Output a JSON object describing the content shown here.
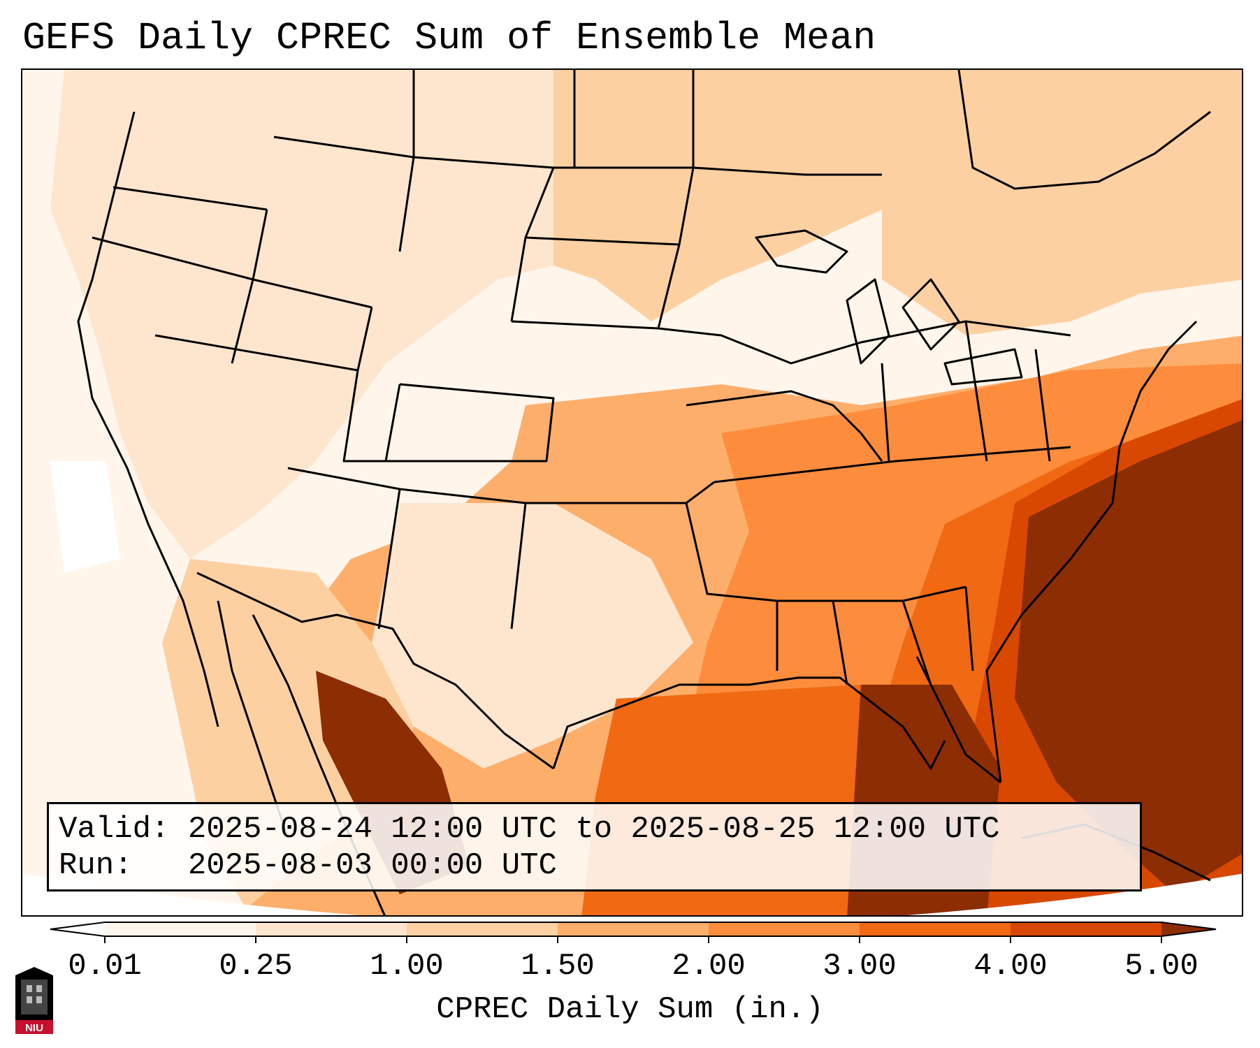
{
  "title": "GEFS Daily CPREC Sum of Ensemble Mean",
  "info": {
    "valid_line": "Valid: 2025-08-24 12:00 UTC to 2025-08-25 12:00 UTC",
    "run_line": "Run:   2025-08-03 00:00 UTC"
  },
  "colorbar": {
    "label": "CPREC Daily Sum (in.)",
    "ticks": [
      "0.01",
      "0.25",
      "1.00",
      "1.50",
      "2.00",
      "3.00",
      "4.00",
      "5.00"
    ],
    "colors": [
      "#fff5eb",
      "#fee6ce",
      "#fdd0a2",
      "#fdae6b",
      "#fd8d3c",
      "#f16913",
      "#d94801",
      "#8c2d04"
    ],
    "under_color": "#ffffff",
    "over_color": "#8c2d04",
    "extend": "both"
  },
  "logo": {
    "text": "NIU",
    "colors": [
      "#c8102e",
      "#000000"
    ]
  }
}
